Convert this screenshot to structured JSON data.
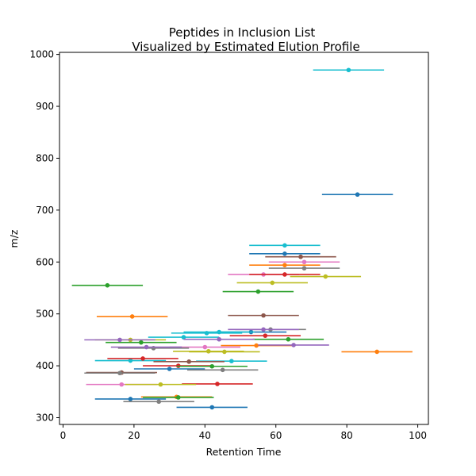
{
  "chart_data": {
    "type": "scatter",
    "title": "Peptides in Inclusion List",
    "subtitle": "Visualized by Estimated Elution Profile",
    "xlabel": "Retention Time",
    "ylabel": "m/z",
    "xlim": [
      -1,
      103
    ],
    "ylim": [
      287,
      1004
    ],
    "xticks": [
      0,
      20,
      40,
      60,
      80,
      100
    ],
    "yticks": [
      300,
      400,
      500,
      600,
      700,
      800,
      900,
      1000
    ],
    "grid": false,
    "error_bars": "horizontal",
    "series": [
      {
        "points": [
          {
            "x": 80.5,
            "y": 970,
            "xmin": 70.5,
            "xmax": 90.5
          },
          {
            "x": 34.0,
            "y": 455,
            "xmin": 24.0,
            "xmax": 44.0
          }
        ],
        "color": "#17becf"
      },
      {
        "points": [
          {
            "x": 83.0,
            "y": 730,
            "xmin": 73.0,
            "xmax": 93.0
          },
          {
            "x": 62.5,
            "y": 616,
            "xmin": 52.5,
            "xmax": 72.5
          },
          {
            "x": 30.0,
            "y": 394,
            "xmin": 20.0,
            "xmax": 40.0
          },
          {
            "x": 19.0,
            "y": 336,
            "xmin": 9.0,
            "xmax": 29.0
          },
          {
            "x": 42.0,
            "y": 320,
            "xmin": 32.0,
            "xmax": 52.0
          },
          {
            "x": 53.0,
            "y": 465,
            "xmin": 43.0,
            "xmax": 63.0
          }
        ],
        "color": "#1f77b4"
      },
      {
        "points": [
          {
            "x": 62.5,
            "y": 632,
            "xmin": 52.5,
            "xmax": 72.5
          },
          {
            "x": 44.0,
            "y": 465,
            "xmin": 34.0,
            "xmax": 54.0
          },
          {
            "x": 19.0,
            "y": 410,
            "xmin": 9.0,
            "xmax": 29.0
          },
          {
            "x": 47.5,
            "y": 409,
            "xmin": 37.5,
            "xmax": 57.5
          },
          {
            "x": 40.5,
            "y": 463,
            "xmin": 30.5,
            "xmax": 50.5
          }
        ],
        "color": "#17becf"
      },
      {
        "points": [
          {
            "x": 67.0,
            "y": 610,
            "xmin": 57.0,
            "xmax": 77.0
          },
          {
            "x": 56.5,
            "y": 497,
            "xmin": 46.5,
            "xmax": 66.5
          },
          {
            "x": 35.5,
            "y": 408,
            "xmin": 25.5,
            "xmax": 45.5
          },
          {
            "x": 16.5,
            "y": 387,
            "xmin": 6.5,
            "xmax": 26.5
          }
        ],
        "color": "#8c564b"
      },
      {
        "points": [
          {
            "x": 68.0,
            "y": 600,
            "xmin": 58.0,
            "xmax": 78.0
          },
          {
            "x": 16.5,
            "y": 364,
            "xmin": 6.5,
            "xmax": 26.5
          },
          {
            "x": 56.5,
            "y": 576,
            "xmin": 46.5,
            "xmax": 66.5
          },
          {
            "x": 40.0,
            "y": 436,
            "xmin": 30.0,
            "xmax": 50.0
          }
        ],
        "color": "#e377c2"
      },
      {
        "points": [
          {
            "x": 62.5,
            "y": 594,
            "xmin": 52.5,
            "xmax": 72.5
          },
          {
            "x": 19.5,
            "y": 495,
            "xmin": 9.5,
            "xmax": 29.5
          },
          {
            "x": 54.5,
            "y": 439,
            "xmin": 44.5,
            "xmax": 64.5
          },
          {
            "x": 88.5,
            "y": 427,
            "xmin": 78.5,
            "xmax": 98.5
          },
          {
            "x": 32.0,
            "y": 340,
            "xmin": 22.0,
            "xmax": 42.0
          }
        ],
        "color": "#ff7f0e"
      },
      {
        "points": [
          {
            "x": 68.0,
            "y": 588,
            "xmin": 58.0,
            "xmax": 78.0
          },
          {
            "x": 16.0,
            "y": 386,
            "xmin": 6.0,
            "xmax": 26.0
          },
          {
            "x": 45.0,
            "y": 392,
            "xmin": 35.0,
            "xmax": 55.0
          },
          {
            "x": 27.0,
            "y": 331,
            "xmin": 17.0,
            "xmax": 37.0
          },
          {
            "x": 58.5,
            "y": 470,
            "xmin": 48.5,
            "xmax": 68.5
          },
          {
            "x": 25.5,
            "y": 434,
            "xmin": 15.5,
            "xmax": 35.5
          }
        ],
        "color": "#7f7f7f"
      },
      {
        "points": [
          {
            "x": 62.5,
            "y": 576,
            "xmin": 52.5,
            "xmax": 72.5
          },
          {
            "x": 43.5,
            "y": 365,
            "xmin": 33.5,
            "xmax": 53.5
          },
          {
            "x": 57.0,
            "y": 458,
            "xmin": 47.0,
            "xmax": 67.0
          },
          {
            "x": 22.5,
            "y": 414,
            "xmin": 12.5,
            "xmax": 32.5
          },
          {
            "x": 32.5,
            "y": 400,
            "xmin": 22.5,
            "xmax": 42.5
          }
        ],
        "color": "#d62728"
      },
      {
        "points": [
          {
            "x": 74.0,
            "y": 572,
            "xmin": 64.0,
            "xmax": 84.0
          },
          {
            "x": 59.0,
            "y": 560,
            "xmin": 49.0,
            "xmax": 69.0
          },
          {
            "x": 19.0,
            "y": 450,
            "xmin": 9.0,
            "xmax": 29.0
          },
          {
            "x": 45.5,
            "y": 427,
            "xmin": 35.5,
            "xmax": 55.5
          },
          {
            "x": 27.5,
            "y": 364,
            "xmin": 17.5,
            "xmax": 37.5
          },
          {
            "x": 41.0,
            "y": 428,
            "xmin": 31.0,
            "xmax": 51.0
          }
        ],
        "color": "#bcbd22"
      },
      {
        "points": [
          {
            "x": 12.5,
            "y": 555,
            "xmin": 2.5,
            "xmax": 22.5
          },
          {
            "x": 55.0,
            "y": 543,
            "xmin": 45.0,
            "xmax": 65.0
          },
          {
            "x": 63.5,
            "y": 451,
            "xmin": 53.5,
            "xmax": 73.5
          },
          {
            "x": 22.0,
            "y": 445,
            "xmin": 12.0,
            "xmax": 32.0
          },
          {
            "x": 42.0,
            "y": 399,
            "xmin": 32.0,
            "xmax": 52.0
          },
          {
            "x": 32.5,
            "y": 339,
            "xmin": 22.5,
            "xmax": 42.5
          }
        ],
        "color": "#2ca02c"
      },
      {
        "points": [
          {
            "x": 56.5,
            "y": 470,
            "xmin": 46.5,
            "xmax": 66.5
          },
          {
            "x": 16.0,
            "y": 450,
            "xmin": 6.0,
            "xmax": 26.0
          },
          {
            "x": 44.0,
            "y": 451,
            "xmin": 34.0,
            "xmax": 54.0
          },
          {
            "x": 65.0,
            "y": 440,
            "xmin": 55.0,
            "xmax": 75.0
          },
          {
            "x": 23.5,
            "y": 436,
            "xmin": 13.5,
            "xmax": 33.5
          }
        ],
        "color": "#9467bd"
      }
    ]
  }
}
